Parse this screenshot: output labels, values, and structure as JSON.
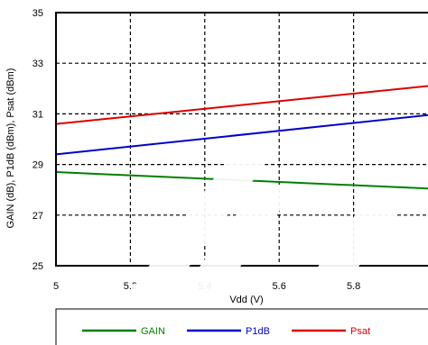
{
  "chart_data": {
    "type": "line",
    "xlabel": "Vdd (V)",
    "ylabel": "GAIN (dB), P1dB (dBm), Psat (dBm)",
    "xlim": [
      5,
      6
    ],
    "ylim": [
      25,
      35
    ],
    "x_ticks": [
      "5",
      "5.2",
      "5.4",
      "5.6",
      "5.8"
    ],
    "y_ticks": [
      "25",
      "27",
      "29",
      "31",
      "33",
      "35"
    ],
    "grid": true,
    "legend_position": "bottom",
    "series": [
      {
        "name": "GAIN",
        "color": "#008000",
        "x": [
          5,
          6
        ],
        "y": [
          28.7,
          28.05
        ]
      },
      {
        "name": "P1dB",
        "color": "#0000cc",
        "x": [
          5,
          6
        ],
        "y": [
          29.4,
          30.95
        ]
      },
      {
        "name": "Psat",
        "color": "#dd0000",
        "x": [
          5,
          6
        ],
        "y": [
          30.6,
          32.1
        ]
      }
    ]
  }
}
